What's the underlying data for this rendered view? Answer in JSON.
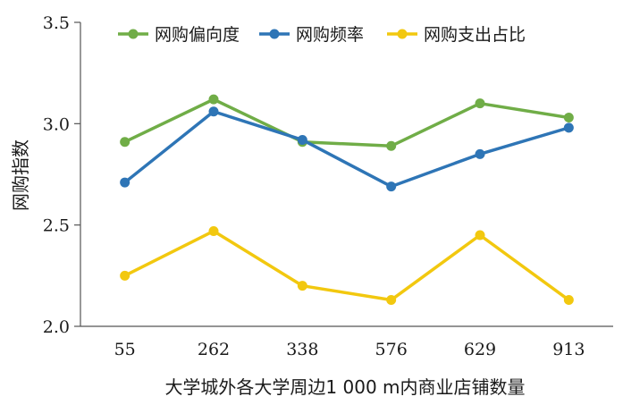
{
  "chart_data": {
    "type": "line",
    "categories": [
      "55",
      "262",
      "338",
      "576",
      "629",
      "913"
    ],
    "series": [
      {
        "name": "网购偏向度",
        "color": "#70ad47",
        "values": [
          2.91,
          3.12,
          2.91,
          2.89,
          3.1,
          3.03
        ]
      },
      {
        "name": "网购频率",
        "color": "#2e75b6",
        "values": [
          2.71,
          3.06,
          2.92,
          2.69,
          2.85,
          2.98
        ]
      },
      {
        "name": "网购支出占比",
        "color": "#f2c80f",
        "values": [
          2.25,
          2.47,
          2.2,
          2.13,
          2.45,
          2.13
        ]
      }
    ],
    "xlabel": "大学城外各大学周边1 000 m内商业店铺数量",
    "ylabel": "网购指数",
    "ylim": [
      2.0,
      3.5
    ],
    "yticks": [
      "2.0",
      "2.5",
      "3.0",
      "3.5"
    ],
    "legend_position": "top",
    "grid": false
  }
}
